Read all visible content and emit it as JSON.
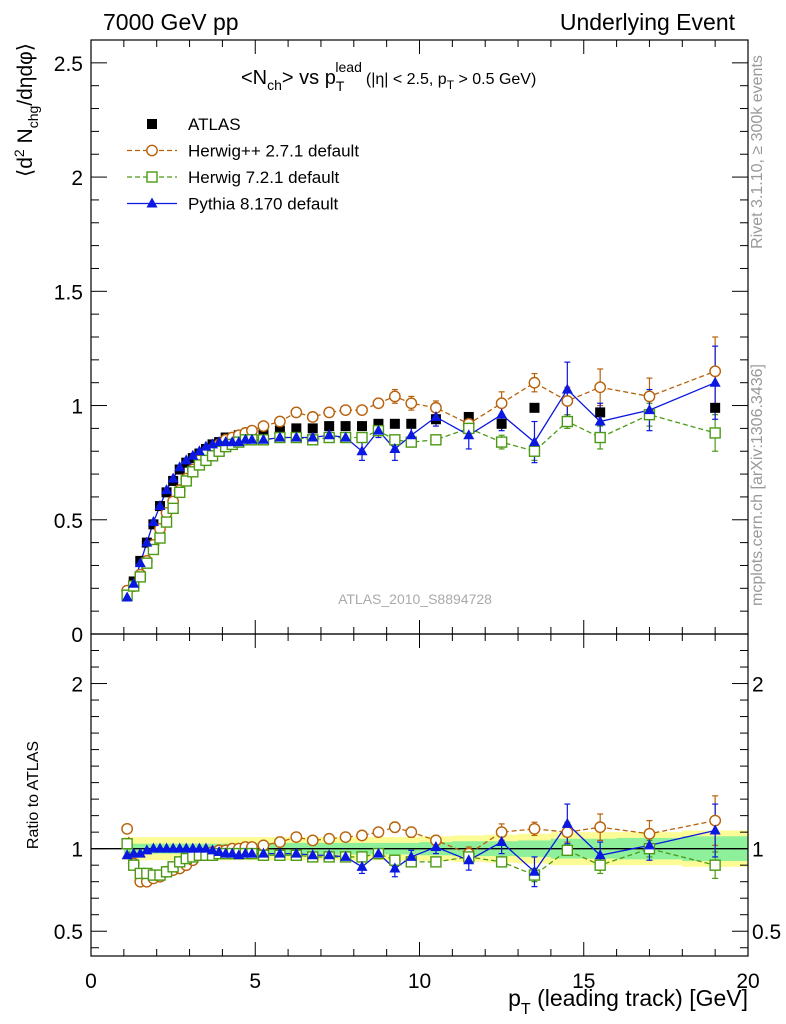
{
  "header": {
    "left": "7000 GeV pp",
    "right": "Underlying Event"
  },
  "side_labels": {
    "rivet": "Rivet 3.1.10, ≥ 300k events",
    "mcplots": "mcplots.cern.ch [arXiv:1306.3436]"
  },
  "watermark": "ATLAS_2010_S8894728",
  "colors": {
    "atlas": "#000000",
    "herwigpp": "#b8610a",
    "herwig7": "#4c9a14",
    "pythia": "#0b18e0",
    "band_stat": "#8ff09b",
    "band_total": "#fdfb96"
  },
  "chart_data": [
    {
      "type": "scatter",
      "panel": "main",
      "title_parts": {
        "n": "<N",
        "ch": "ch",
        "vs": "> vs p",
        "T": "T",
        "lead": "lead",
        "cuts1": "(|η| < 2.5, p",
        "cuts_T": "T",
        "cuts2": " > 0.5 GeV)"
      },
      "ylabel_parts": {
        "a": "⟨d",
        "sup2": "2",
        "b": " N",
        "chg": "chg",
        "c": "/dηdφ⟩"
      },
      "xlim": [
        0,
        20
      ],
      "ylim": [
        0,
        2.6
      ],
      "yticks": [
        0,
        0.5,
        1,
        1.5,
        2,
        2.5
      ],
      "ytick_labels": [
        "0",
        "0.5",
        "1",
        "1.5",
        "2",
        "2.5"
      ],
      "x": [
        1.1,
        1.3,
        1.5,
        1.7,
        1.9,
        2.1,
        2.3,
        2.5,
        2.7,
        2.9,
        3.1,
        3.3,
        3.5,
        3.7,
        3.9,
        4.1,
        4.3,
        4.5,
        4.7,
        4.9,
        5.25,
        5.75,
        6.25,
        6.75,
        7.25,
        7.75,
        8.25,
        8.75,
        9.25,
        9.75,
        10.5,
        11.5,
        12.5,
        13.5,
        14.5,
        15.5,
        17.0,
        19.0
      ],
      "series": [
        {
          "name": "ATLAS",
          "marker": "square-filled",
          "values": [
            0.17,
            0.23,
            0.32,
            0.4,
            0.48,
            0.56,
            0.62,
            0.67,
            0.72,
            0.75,
            0.77,
            0.79,
            0.81,
            0.83,
            0.84,
            0.86,
            0.86,
            0.87,
            0.87,
            0.88,
            0.89,
            0.89,
            0.9,
            0.9,
            0.91,
            0.91,
            0.91,
            0.92,
            0.92,
            0.92,
            0.94,
            0.95,
            0.92,
            0.99,
            0.93,
            0.97,
            0.96,
            0.99
          ]
        },
        {
          "name": "Herwig++ 2.7.1 default",
          "marker": "circle-open",
          "line": "dashed",
          "values": [
            0.19,
            0.21,
            0.26,
            0.32,
            0.39,
            0.46,
            0.53,
            0.58,
            0.63,
            0.68,
            0.72,
            0.76,
            0.79,
            0.81,
            0.83,
            0.85,
            0.86,
            0.87,
            0.88,
            0.89,
            0.91,
            0.93,
            0.97,
            0.95,
            0.97,
            0.98,
            0.98,
            1.01,
            1.04,
            1.01,
            0.99,
            0.92,
            1.01,
            1.1,
            1.02,
            1.08,
            1.04,
            1.15
          ],
          "errors": [
            0.005,
            0.005,
            0.005,
            0.005,
            0.005,
            0.005,
            0.005,
            0.005,
            0.005,
            0.005,
            0.005,
            0.005,
            0.005,
            0.005,
            0.005,
            0.005,
            0.005,
            0.005,
            0.005,
            0.005,
            0.01,
            0.01,
            0.01,
            0.01,
            0.01,
            0.01,
            0.015,
            0.02,
            0.03,
            0.03,
            0.03,
            0.04,
            0.05,
            0.04,
            0.06,
            0.08,
            0.08,
            0.15
          ]
        },
        {
          "name": "Herwig 7.2.1 default",
          "marker": "square-open",
          "line": "dashed",
          "values": [
            0.17,
            0.21,
            0.25,
            0.31,
            0.37,
            0.42,
            0.49,
            0.55,
            0.62,
            0.67,
            0.71,
            0.74,
            0.76,
            0.78,
            0.8,
            0.82,
            0.83,
            0.84,
            0.85,
            0.85,
            0.85,
            0.86,
            0.86,
            0.85,
            0.86,
            0.86,
            0.86,
            0.89,
            0.85,
            0.84,
            0.85,
            0.9,
            0.84,
            0.8,
            0.93,
            0.86,
            0.96,
            0.88
          ],
          "errors": [
            0.005,
            0.005,
            0.005,
            0.005,
            0.005,
            0.005,
            0.005,
            0.005,
            0.005,
            0.005,
            0.005,
            0.005,
            0.005,
            0.005,
            0.005,
            0.005,
            0.005,
            0.005,
            0.005,
            0.005,
            0.01,
            0.01,
            0.01,
            0.01,
            0.01,
            0.01,
            0.015,
            0.02,
            0.02,
            0.02,
            0.02,
            0.03,
            0.03,
            0.04,
            0.03,
            0.05,
            0.05,
            0.08
          ]
        },
        {
          "name": "Pythia 8.170 default",
          "marker": "triangle-filled",
          "line": "solid",
          "values": [
            0.16,
            0.22,
            0.31,
            0.4,
            0.49,
            0.56,
            0.63,
            0.68,
            0.73,
            0.76,
            0.78,
            0.8,
            0.82,
            0.83,
            0.84,
            0.84,
            0.84,
            0.84,
            0.85,
            0.85,
            0.85,
            0.86,
            0.86,
            0.86,
            0.87,
            0.86,
            0.8,
            0.89,
            0.81,
            0.87,
            0.95,
            0.87,
            0.96,
            0.84,
            1.07,
            0.93,
            0.98,
            1.1
          ],
          "errors": [
            0.005,
            0.005,
            0.005,
            0.005,
            0.005,
            0.005,
            0.005,
            0.005,
            0.005,
            0.005,
            0.005,
            0.005,
            0.005,
            0.005,
            0.005,
            0.005,
            0.005,
            0.005,
            0.005,
            0.005,
            0.01,
            0.01,
            0.01,
            0.01,
            0.02,
            0.02,
            0.04,
            0.03,
            0.05,
            0.04,
            0.04,
            0.06,
            0.07,
            0.09,
            0.12,
            0.08,
            0.09,
            0.16
          ]
        }
      ]
    },
    {
      "type": "scatter",
      "panel": "ratio",
      "ylabel": "Ratio to ATLAS",
      "xlabel_parts": {
        "p": "p",
        "T": "T",
        "rest": " (leading track) [GeV]"
      },
      "xlim": [
        0,
        20
      ],
      "ylim": [
        0.35,
        2.3
      ],
      "xticks": [
        0,
        5,
        10,
        15,
        20
      ],
      "xtick_labels": [
        "0",
        "5",
        "10",
        "15",
        "20"
      ],
      "yticks": [
        0.5,
        1,
        2
      ],
      "ytick_labels": [
        "0.5",
        "1",
        "2"
      ],
      "x": [
        1.1,
        1.3,
        1.5,
        1.7,
        1.9,
        2.1,
        2.3,
        2.5,
        2.7,
        2.9,
        3.1,
        3.3,
        3.5,
        3.7,
        3.9,
        4.1,
        4.3,
        4.5,
        4.7,
        4.9,
        5.25,
        5.75,
        6.25,
        6.75,
        7.25,
        7.75,
        8.25,
        8.75,
        9.25,
        9.75,
        10.5,
        11.5,
        12.5,
        13.5,
        14.5,
        15.5,
        17.0,
        19.0
      ],
      "band_edges": [
        1.0,
        1.2,
        1.4,
        1.6,
        1.8,
        2.0,
        2.2,
        2.4,
        2.6,
        2.8,
        3.0,
        3.2,
        3.4,
        3.6,
        3.8,
        4.0,
        4.2,
        4.4,
        4.6,
        4.8,
        5.0,
        5.5,
        6.0,
        6.5,
        7.0,
        7.5,
        8.0,
        8.5,
        9.0,
        9.5,
        10.0,
        11.0,
        12.0,
        13.0,
        14.0,
        15.0,
        16.0,
        18.0,
        20.0
      ],
      "band_stat": [
        0.03,
        0.03,
        0.03,
        0.03,
        0.03,
        0.03,
        0.03,
        0.03,
        0.03,
        0.03,
        0.03,
        0.03,
        0.03,
        0.03,
        0.03,
        0.03,
        0.03,
        0.03,
        0.03,
        0.03,
        0.035,
        0.035,
        0.035,
        0.035,
        0.035,
        0.035,
        0.035,
        0.035,
        0.035,
        0.035,
        0.04,
        0.045,
        0.045,
        0.05,
        0.06,
        0.06,
        0.065,
        0.075
      ],
      "band_total": [
        0.07,
        0.07,
        0.07,
        0.07,
        0.07,
        0.07,
        0.07,
        0.07,
        0.07,
        0.07,
        0.07,
        0.07,
        0.07,
        0.07,
        0.07,
        0.07,
        0.07,
        0.07,
        0.07,
        0.07,
        0.07,
        0.07,
        0.07,
        0.07,
        0.07,
        0.07,
        0.07,
        0.07,
        0.07,
        0.07,
        0.075,
        0.08,
        0.085,
        0.09,
        0.1,
        0.1,
        0.1,
        0.11
      ],
      "series": [
        {
          "name": "Herwig++ 2.7.1 default",
          "marker": "circle-open",
          "line": "dashed",
          "values": [
            1.12,
            0.91,
            0.8,
            0.8,
            0.82,
            0.83,
            0.86,
            0.87,
            0.88,
            0.9,
            0.93,
            0.96,
            0.97,
            0.98,
            0.99,
            0.99,
            1.0,
            1.0,
            1.01,
            1.01,
            1.02,
            1.04,
            1.07,
            1.05,
            1.06,
            1.07,
            1.08,
            1.1,
            1.13,
            1.1,
            1.05,
            0.97,
            1.1,
            1.12,
            1.1,
            1.13,
            1.09,
            1.17
          ],
          "errors": [
            0.01,
            0.01,
            0.01,
            0.01,
            0.01,
            0.01,
            0.01,
            0.01,
            0.01,
            0.01,
            0.01,
            0.01,
            0.01,
            0.01,
            0.01,
            0.01,
            0.01,
            0.01,
            0.01,
            0.01,
            0.01,
            0.01,
            0.01,
            0.01,
            0.01,
            0.01,
            0.015,
            0.02,
            0.03,
            0.03,
            0.03,
            0.04,
            0.05,
            0.04,
            0.06,
            0.08,
            0.08,
            0.15
          ]
        },
        {
          "name": "Herwig 7.2.1 default",
          "marker": "square-open",
          "line": "dashed",
          "values": [
            1.03,
            0.9,
            0.85,
            0.85,
            0.84,
            0.84,
            0.86,
            0.89,
            0.92,
            0.94,
            0.95,
            0.96,
            0.96,
            0.96,
            0.97,
            0.97,
            0.97,
            0.97,
            0.97,
            0.97,
            0.96,
            0.96,
            0.96,
            0.95,
            0.95,
            0.95,
            0.95,
            0.97,
            0.93,
            0.92,
            0.92,
            0.95,
            0.92,
            0.84,
            0.99,
            0.9,
            1.0,
            0.9
          ],
          "errors": [
            0.01,
            0.01,
            0.01,
            0.01,
            0.01,
            0.01,
            0.01,
            0.01,
            0.01,
            0.01,
            0.01,
            0.01,
            0.01,
            0.01,
            0.01,
            0.01,
            0.01,
            0.01,
            0.01,
            0.01,
            0.01,
            0.01,
            0.01,
            0.01,
            0.01,
            0.01,
            0.015,
            0.02,
            0.02,
            0.02,
            0.02,
            0.03,
            0.03,
            0.04,
            0.03,
            0.05,
            0.05,
            0.08
          ]
        },
        {
          "name": "Pythia 8.170 default",
          "marker": "triangle-filled",
          "line": "solid",
          "values": [
            0.96,
            0.97,
            0.97,
            0.99,
            1.0,
            1.0,
            1.0,
            1.0,
            1.0,
            1.0,
            1.0,
            1.0,
            1.0,
            0.99,
            0.98,
            0.97,
            0.97,
            0.96,
            0.97,
            0.97,
            0.97,
            0.97,
            0.97,
            0.96,
            0.96,
            0.95,
            0.89,
            0.97,
            0.88,
            0.95,
            1.01,
            0.93,
            1.04,
            0.86,
            1.15,
            0.96,
            1.02,
            1.11
          ],
          "errors": [
            0.01,
            0.01,
            0.01,
            0.01,
            0.01,
            0.01,
            0.01,
            0.01,
            0.01,
            0.01,
            0.01,
            0.01,
            0.01,
            0.01,
            0.01,
            0.01,
            0.01,
            0.01,
            0.01,
            0.01,
            0.01,
            0.01,
            0.01,
            0.01,
            0.02,
            0.02,
            0.04,
            0.03,
            0.05,
            0.04,
            0.04,
            0.06,
            0.07,
            0.09,
            0.12,
            0.08,
            0.09,
            0.16
          ]
        }
      ]
    }
  ]
}
